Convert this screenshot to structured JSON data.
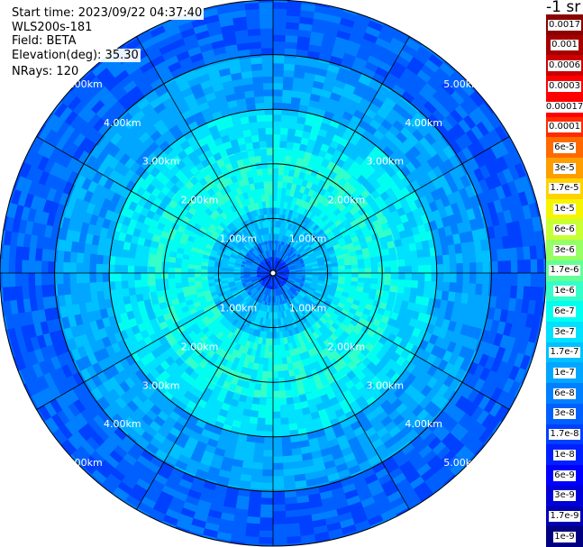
{
  "info": {
    "start_time": "Start time: 2023/09/22 04:37:40",
    "instrument": "WLS200s-181",
    "field": "Field: BETA",
    "elevation": "Elevation(deg): 35.30",
    "nrays": "NRays: 120"
  },
  "colorbar": {
    "unit_label": "-1 sr",
    "labels": [
      "0.0017",
      "0.001",
      "0.0006",
      "0.0003",
      "0.00017",
      "0.0001",
      "6e-5",
      "3e-5",
      "1.7e-5",
      "1e-5",
      "6e-6",
      "3e-6",
      "1.7e-6",
      "1e-6",
      "6e-7",
      "3e-7",
      "1.7e-7",
      "1e-7",
      "6e-8",
      "3e-8",
      "1.7e-8",
      "1e-8",
      "6e-9",
      "3e-9",
      "1.7e-9",
      "1e-9"
    ],
    "colors": [
      "#8b0000",
      "#a50000",
      "#cc0000",
      "#ff0000",
      "#ff0000",
      "#ff2a00",
      "#ff6a00",
      "#ff9e00",
      "#ffd200",
      "#f5f500",
      "#c8ff34",
      "#96ff64",
      "#64ff96",
      "#34ffc8",
      "#00fff0",
      "#00e0ff",
      "#00c0ff",
      "#00a6ff",
      "#0080ff",
      "#0060ff",
      "#0040ff",
      "#0020ff",
      "#0000ff",
      "#0000d8",
      "#0000b0",
      "#000080"
    ]
  },
  "chart_data": {
    "type": "heatmap",
    "projection": "polar PPI",
    "field": "BETA",
    "elevation_deg": 35.3,
    "n_rays": 120,
    "range_rings_km": [
      1,
      2,
      3,
      4,
      5
    ],
    "ring_labels": [
      "1.00km",
      "2.00km",
      "3.00km",
      "4.00km",
      "5.00km"
    ],
    "radial_spokes_deg": [
      0,
      30,
      60,
      90,
      120,
      150,
      180,
      210,
      240,
      270,
      300,
      330
    ],
    "max_range_km": 5.0,
    "colormap": "jet",
    "value_bands": [
      {
        "range_km": [
          0.0,
          0.3
        ],
        "beta": "2e-8"
      },
      {
        "range_km": [
          0.3,
          0.6
        ],
        "beta": "6e-8"
      },
      {
        "range_km": [
          0.6,
          1.2
        ],
        "beta": "1.7e-7"
      },
      {
        "range_km": [
          1.2,
          2.3
        ],
        "beta": "6e-7"
      },
      {
        "range_km": [
          2.3,
          3.0
        ],
        "beta": "3e-7"
      },
      {
        "range_km": [
          3.0,
          4.0
        ],
        "beta": "1e-7"
      },
      {
        "range_km": [
          4.0,
          5.0
        ],
        "beta": "3e-8"
      }
    ]
  }
}
